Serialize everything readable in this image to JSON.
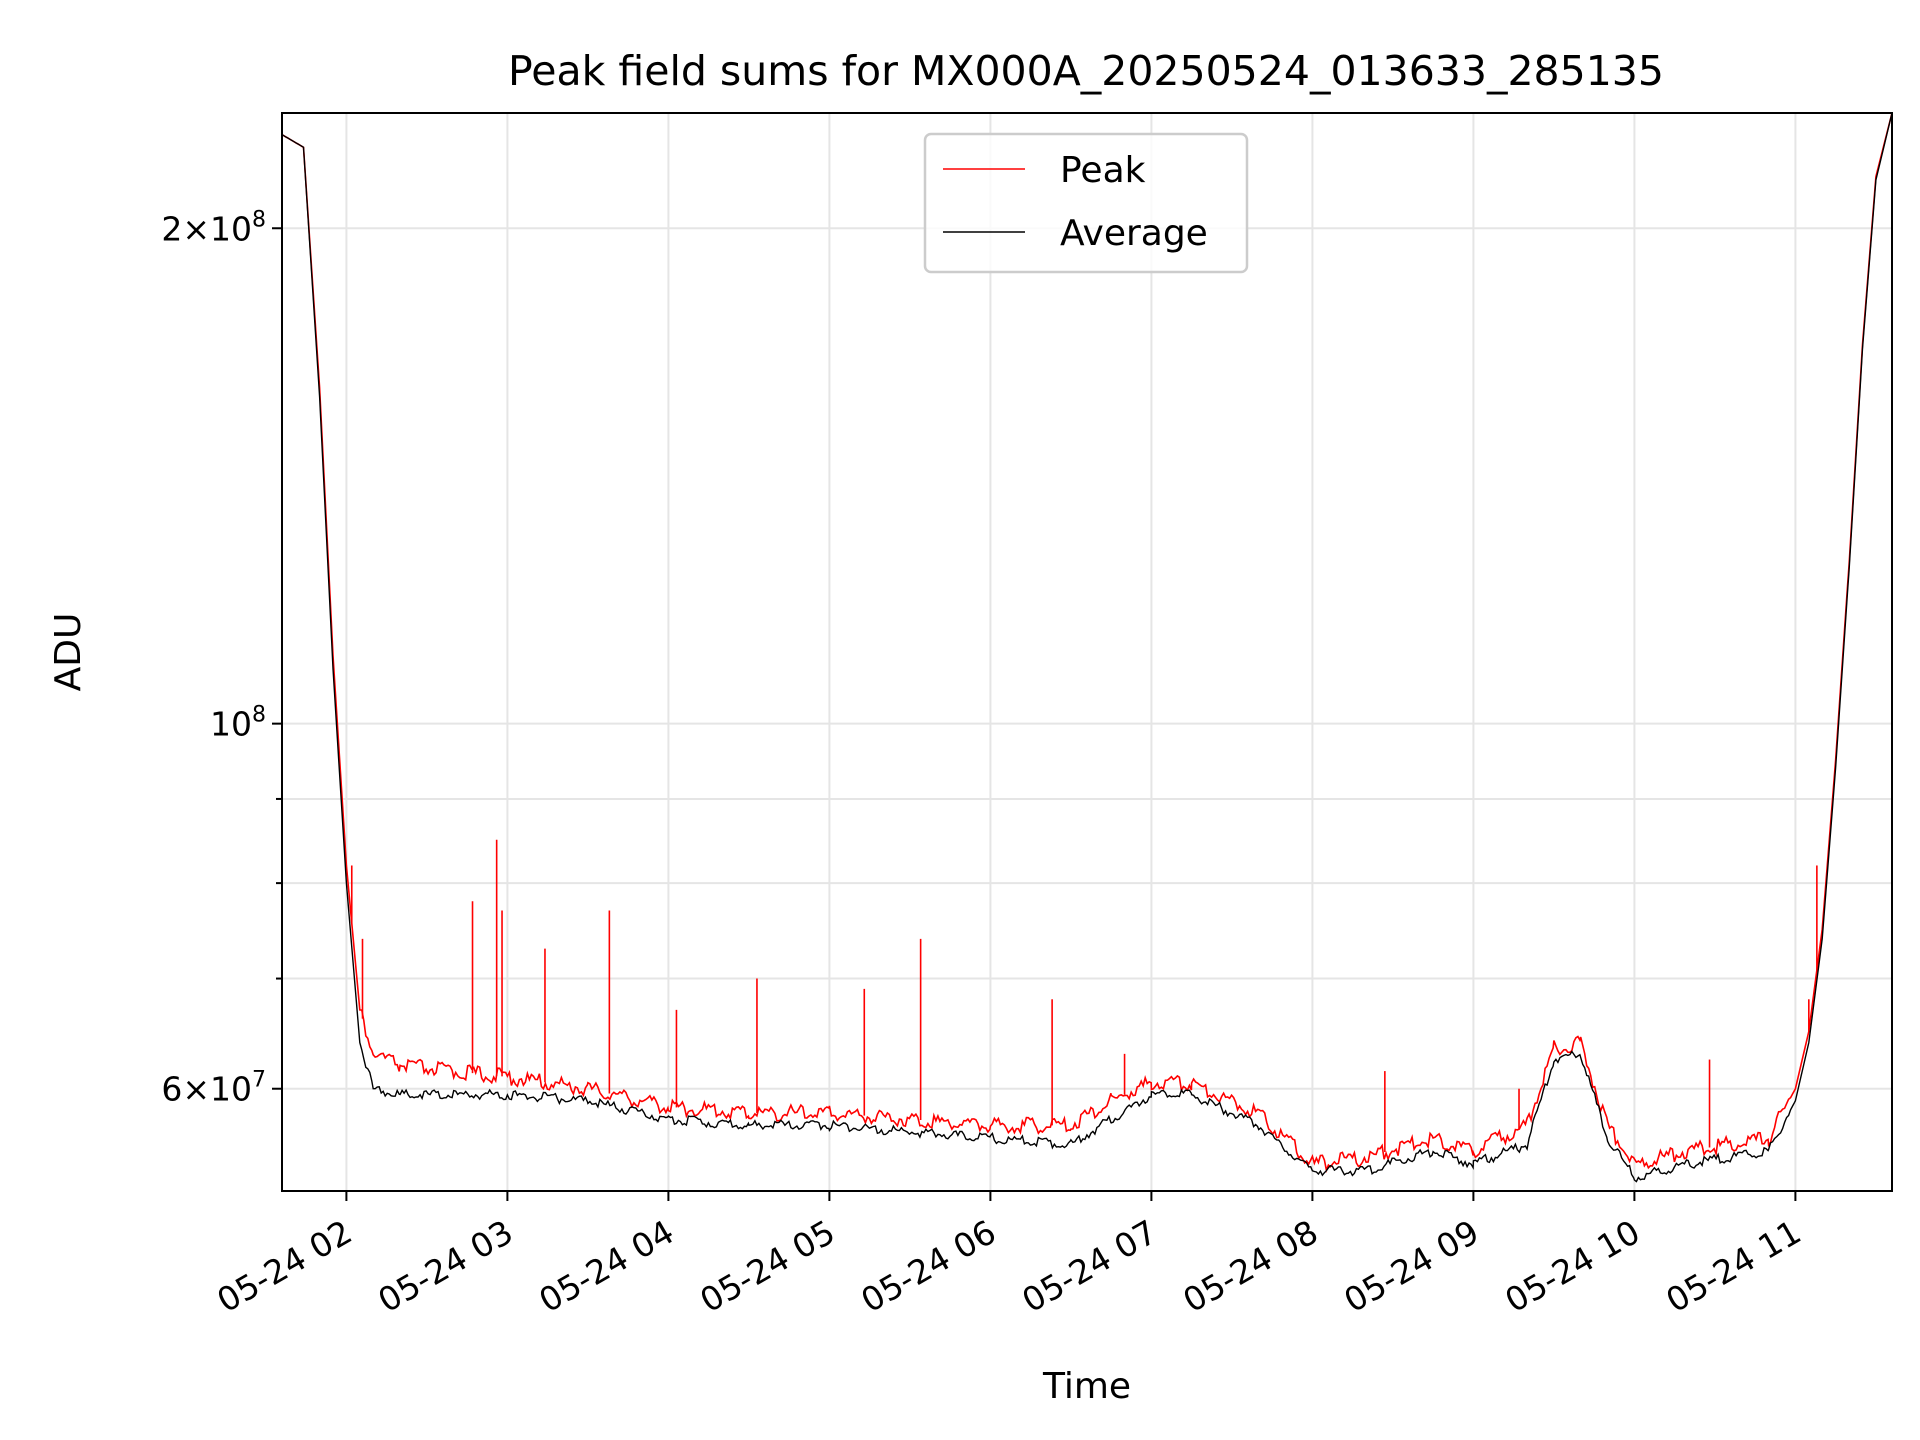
{
  "chart_data": {
    "type": "line",
    "title": "Peak field sums for MX000A_20250524_013633_285135",
    "xlabel": "Time",
    "ylabel": "ADU",
    "yscale": "log",
    "ylim": [
      52000000,
      235000000
    ],
    "xlim": [
      "2025-05-24 01:36",
      "2025-05-24 11:36"
    ],
    "grid": true,
    "legend_position": "upper center",
    "x_ticks": [
      {
        "time": "2025-05-24 02:00",
        "label": "05-24 02"
      },
      {
        "time": "2025-05-24 03:00",
        "label": "05-24 03"
      },
      {
        "time": "2025-05-24 04:00",
        "label": "05-24 04"
      },
      {
        "time": "2025-05-24 05:00",
        "label": "05-24 05"
      },
      {
        "time": "2025-05-24 06:00",
        "label": "05-24 06"
      },
      {
        "time": "2025-05-24 07:00",
        "label": "05-24 07"
      },
      {
        "time": "2025-05-24 08:00",
        "label": "05-24 08"
      },
      {
        "time": "2025-05-24 09:00",
        "label": "05-24 09"
      },
      {
        "time": "2025-05-24 10:00",
        "label": "05-24 10"
      },
      {
        "time": "2025-05-24 11:00",
        "label": "05-24 11"
      }
    ],
    "y_ticks_major": [
      {
        "value": 60000000,
        "mantissa": "6",
        "exp": "7"
      },
      {
        "value": 100000000,
        "mantissa": "",
        "exp": "8"
      },
      {
        "value": 200000000,
        "mantissa": "2",
        "exp": "8"
      }
    ],
    "y_ticks_minor": [
      70000000,
      80000000,
      90000000
    ],
    "series": [
      {
        "name": "Peak",
        "color": "#ff0000",
        "x": [
          "2025-05-24 01:36",
          "2025-05-24 01:44",
          "2025-05-24 01:50",
          "2025-05-24 01:55",
          "2025-05-24 02:00",
          "2025-05-24 02:05",
          "2025-05-24 02:10",
          "2025-05-24 02:20",
          "2025-05-24 02:40",
          "2025-05-24 03:00",
          "2025-05-24 03:30",
          "2025-05-24 04:00",
          "2025-05-24 04:30",
          "2025-05-24 05:00",
          "2025-05-24 05:30",
          "2025-05-24 06:00",
          "2025-05-24 06:30",
          "2025-05-24 06:45",
          "2025-05-24 07:00",
          "2025-05-24 07:15",
          "2025-05-24 07:40",
          "2025-05-24 08:00",
          "2025-05-24 08:20",
          "2025-05-24 08:45",
          "2025-05-24 09:00",
          "2025-05-24 09:20",
          "2025-05-24 09:30",
          "2025-05-24 09:40",
          "2025-05-24 09:50",
          "2025-05-24 10:00",
          "2025-05-24 10:20",
          "2025-05-24 10:50",
          "2025-05-24 11:00",
          "2025-05-24 11:05",
          "2025-05-24 11:10",
          "2025-05-24 11:15",
          "2025-05-24 11:20",
          "2025-05-24 11:25",
          "2025-05-24 11:30",
          "2025-05-24 11:36"
        ],
        "values": [
          228000000,
          224000000,
          160000000,
          110000000,
          82000000,
          67000000,
          63000000,
          62000000,
          61500000,
          61000000,
          60000000,
          58500000,
          58000000,
          58000000,
          57500000,
          57000000,
          57000000,
          59000000,
          60500000,
          60500000,
          58000000,
          54000000,
          54500000,
          56000000,
          55000000,
          57000000,
          63500000,
          64000000,
          57000000,
          54000000,
          55000000,
          56000000,
          60000000,
          65000000,
          75000000,
          95000000,
          125000000,
          170000000,
          215000000,
          235000000
        ],
        "spikes": [
          {
            "x": "2025-05-24 02:02",
            "value": 82000000
          },
          {
            "x": "2025-05-24 02:06",
            "value": 74000000
          },
          {
            "x": "2025-05-24 02:47",
            "value": 78000000
          },
          {
            "x": "2025-05-24 02:56",
            "value": 85000000
          },
          {
            "x": "2025-05-24 02:58",
            "value": 77000000
          },
          {
            "x": "2025-05-24 03:14",
            "value": 73000000
          },
          {
            "x": "2025-05-24 03:38",
            "value": 77000000
          },
          {
            "x": "2025-05-24 04:03",
            "value": 67000000
          },
          {
            "x": "2025-05-24 04:33",
            "value": 70000000
          },
          {
            "x": "2025-05-24 05:13",
            "value": 69000000
          },
          {
            "x": "2025-05-24 05:34",
            "value": 74000000
          },
          {
            "x": "2025-05-24 06:23",
            "value": 68000000
          },
          {
            "x": "2025-05-24 06:50",
            "value": 63000000
          },
          {
            "x": "2025-05-24 08:27",
            "value": 61500000
          },
          {
            "x": "2025-05-24 09:17",
            "value": 60000000
          },
          {
            "x": "2025-05-24 10:28",
            "value": 62500000
          },
          {
            "x": "2025-05-24 11:05",
            "value": 68000000
          },
          {
            "x": "2025-05-24 11:08",
            "value": 82000000
          }
        ]
      },
      {
        "name": "Average",
        "color": "#000000",
        "x": [
          "2025-05-24 01:36",
          "2025-05-24 01:44",
          "2025-05-24 01:50",
          "2025-05-24 01:55",
          "2025-05-24 02:00",
          "2025-05-24 02:05",
          "2025-05-24 02:10",
          "2025-05-24 02:20",
          "2025-05-24 02:40",
          "2025-05-24 03:00",
          "2025-05-24 03:30",
          "2025-05-24 04:00",
          "2025-05-24 04:30",
          "2025-05-24 05:00",
          "2025-05-24 05:30",
          "2025-05-24 06:00",
          "2025-05-24 06:30",
          "2025-05-24 06:45",
          "2025-05-24 07:00",
          "2025-05-24 07:15",
          "2025-05-24 07:40",
          "2025-05-24 08:00",
          "2025-05-24 08:20",
          "2025-05-24 08:45",
          "2025-05-24 09:00",
          "2025-05-24 09:20",
          "2025-05-24 09:30",
          "2025-05-24 09:40",
          "2025-05-24 09:50",
          "2025-05-24 10:00",
          "2025-05-24 10:20",
          "2025-05-24 10:50",
          "2025-05-24 11:00",
          "2025-05-24 11:05",
          "2025-05-24 11:10",
          "2025-05-24 11:15",
          "2025-05-24 11:20",
          "2025-05-24 11:25",
          "2025-05-24 11:30",
          "2025-05-24 11:36"
        ],
        "values": [
          228000000,
          224000000,
          158000000,
          108000000,
          80000000,
          64000000,
          60000000,
          59500000,
          59500000,
          59500000,
          59000000,
          57500000,
          57000000,
          57000000,
          56500000,
          56000000,
          55500000,
          57500000,
          59500000,
          59500000,
          57000000,
          53500000,
          53500000,
          55000000,
          54000000,
          55500000,
          62500000,
          63000000,
          56000000,
          53000000,
          54000000,
          55000000,
          59000000,
          64000000,
          74000000,
          94000000,
          124000000,
          169000000,
          214000000,
          235000000
        ]
      }
    ]
  }
}
